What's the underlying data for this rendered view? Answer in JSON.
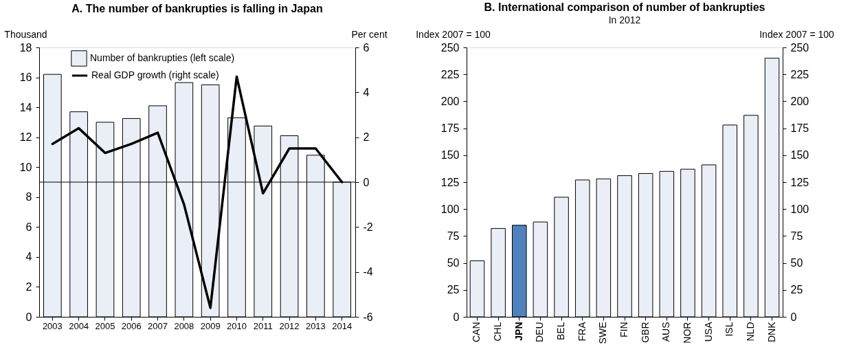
{
  "chart_data": [
    {
      "type": "bar",
      "title": "A. The number of bankrupties is falling in Japan",
      "ylabel": "Thousand",
      "y2label": "Per cent",
      "categories": [
        "2003",
        "2004",
        "2005",
        "2006",
        "2007",
        "2008",
        "2009",
        "2010",
        "2011",
        "2012",
        "2013",
        "2014"
      ],
      "series": [
        {
          "name": "Number of bankrupties (left scale)",
          "color": "#eaeef7",
          "values": [
            16.2,
            13.7,
            13.0,
            13.25,
            14.1,
            15.65,
            15.5,
            13.3,
            12.75,
            12.1,
            10.8,
            9.0
          ]
        },
        {
          "name": "Real GDP growth (right scale)",
          "type": "line",
          "axis": "y2",
          "color": "#000000",
          "values": [
            1.7,
            2.4,
            1.3,
            1.7,
            2.2,
            -1.0,
            -5.6,
            4.7,
            -0.5,
            1.5,
            1.5,
            0.0
          ]
        }
      ],
      "ylim": [
        0,
        18
      ],
      "yticks": [
        0,
        2,
        4,
        6,
        8,
        10,
        12,
        14,
        16,
        18
      ],
      "y2lim": [
        -6,
        6
      ],
      "y2ticks": [
        -6,
        -4,
        -2,
        0,
        2,
        4,
        6
      ],
      "ref_lines": [
        {
          "axis": "y2",
          "value": 0
        }
      ],
      "legend": "top",
      "grid": false
    },
    {
      "type": "bar",
      "title": "B. International comparison of number of bankrupties",
      "subtitle": "In 2012",
      "ylabel": "Index 2007 = 100",
      "y2label": "Index 2007 = 100",
      "categories": [
        "CAN",
        "CHL",
        "JPN",
        "DEU",
        "BEL",
        "FRA",
        "SWE",
        "FIN",
        "GBR",
        "AUS",
        "NOR",
        "USA",
        "ISL",
        "NLD",
        "DNK"
      ],
      "values": [
        52,
        82,
        85,
        88,
        111,
        127,
        128,
        131,
        133,
        135,
        137,
        141,
        178,
        187,
        240
      ],
      "colors": [
        "#eaeef7",
        "#eaeef7",
        "#4f81bd",
        "#eaeef7",
        "#eaeef7",
        "#eaeef7",
        "#eaeef7",
        "#eaeef7",
        "#eaeef7",
        "#eaeef7",
        "#eaeef7",
        "#eaeef7",
        "#eaeef7",
        "#eaeef7",
        "#eaeef7"
      ],
      "ylim": [
        0,
        250
      ],
      "yticks": [
        0,
        25,
        50,
        75,
        100,
        125,
        150,
        175,
        200,
        225,
        250
      ],
      "y2lim": [
        0,
        250
      ],
      "y2ticks": [
        0,
        25,
        50,
        75,
        100,
        125,
        150,
        175,
        200,
        225,
        250
      ],
      "legend": false,
      "grid": false
    }
  ]
}
